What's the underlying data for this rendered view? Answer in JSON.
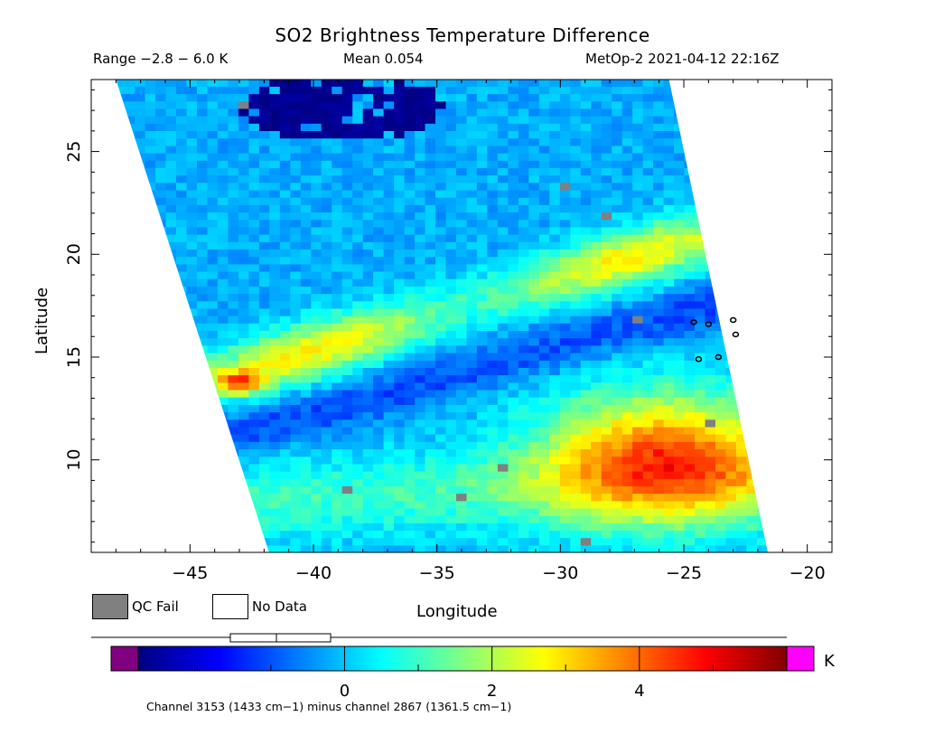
{
  "chart_data": {
    "type": "heatmap",
    "title": "SO2 Brightness Temperature Difference",
    "range_text": "Range −2.8 − 6.0 K",
    "mean_text": "Mean 0.054",
    "satellite_text": "MetOp-2 2021-04-12 22:16Z",
    "xlabel": "Longitude",
    "ylabel": "Latitude",
    "xlim": [
      -49,
      -19
    ],
    "ylim": [
      5.5,
      28.5
    ],
    "x_ticks": [
      -45,
      -40,
      -35,
      -30,
      -25,
      -20
    ],
    "x_tick_labels": [
      "−45",
      "−40",
      "−35",
      "−30",
      "−25",
      "−20"
    ],
    "y_ticks": [
      10,
      15,
      20,
      25
    ],
    "y_tick_labels": [
      "10",
      "15",
      "20",
      "25"
    ],
    "swath_corners_lonlat": {
      "top_left": [
        -48.0,
        28.5
      ],
      "top_right": [
        -25.6,
        28.5
      ],
      "bottom_right": [
        -21.6,
        5.5
      ],
      "bottom_left": [
        -41.8,
        5.5
      ]
    },
    "field_features": [
      {
        "name": "SO2 band north",
        "from": [
          -43.5,
          14.0
        ],
        "to": [
          -25,
          20.5
        ],
        "peak_k": 3.0
      },
      {
        "name": "SO2 plume southeast",
        "center": [
          -26,
          10
        ],
        "peak_k": 4.5
      },
      {
        "name": "hot spot west",
        "center": [
          -43.2,
          13.6
        ],
        "peak_k": 5.5
      },
      {
        "name": "negative region north",
        "center": [
          -39,
          27
        ],
        "value_k": -2.5
      }
    ],
    "colorbar": {
      "min": -2.8,
      "max": 6.0,
      "tick_values": [
        0,
        2,
        4
      ],
      "tick_labels": [
        "0",
        "2",
        "4"
      ],
      "unit": "K",
      "under_color": "#800080",
      "over_color": "#ff00ff",
      "stops": [
        "#000080",
        "#0000ff",
        "#0080ff",
        "#00ffff",
        "#80ff80",
        "#ffff00",
        "#ff8000",
        "#ff0000",
        "#800000"
      ]
    },
    "legend": {
      "qc_fail_label": "QC Fail",
      "qc_fail_color": "#808080",
      "no_data_label": "No Data",
      "no_data_color": "#ffffff"
    },
    "footnote": "Channel 3153 (1433 cm−1) minus channel 2867 (1361.5 cm−1)",
    "coastline_islands_lonlat": [
      [
        -24.6,
        16.7
      ],
      [
        -23.0,
        16.8
      ],
      [
        -22.9,
        16.1
      ],
      [
        -24.0,
        16.6
      ],
      [
        -23.6,
        15.0
      ],
      [
        -24.4,
        14.9
      ]
    ]
  }
}
